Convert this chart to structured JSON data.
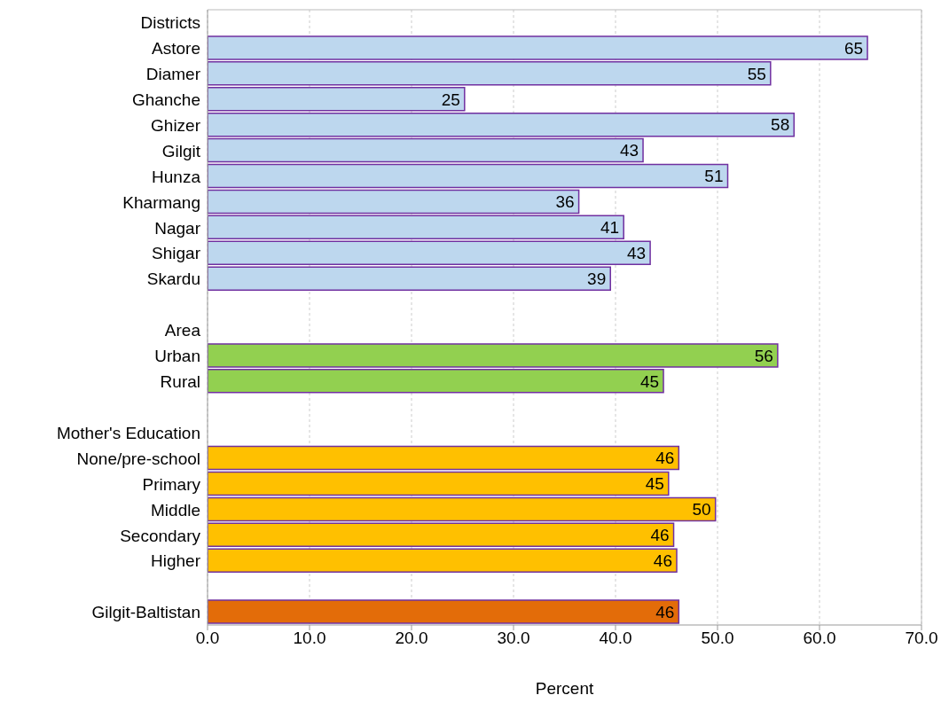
{
  "chart_data": {
    "type": "bar",
    "orientation": "horizontal",
    "xlabel": "Percent",
    "categories": [
      "Districts",
      "Astore",
      "Diamer",
      "Ghanche",
      "Ghizer",
      "Gilgit",
      "Hunza",
      "Kharmang",
      "Nagar",
      "Shigar",
      "Skardu",
      null,
      "Area",
      "Urban",
      "Rural",
      null,
      "Mother's Education",
      "None/pre-school",
      "Primary",
      "Middle",
      "Secondary",
      "Higher",
      null,
      "Gilgit-Baltistan"
    ],
    "values": [
      null,
      64.7,
      55.2,
      25.2,
      57.5,
      42.7,
      51.0,
      36.4,
      40.8,
      43.4,
      39.5,
      null,
      null,
      55.9,
      44.7,
      null,
      null,
      46.2,
      45.2,
      49.8,
      45.7,
      46.0,
      null,
      46.2
    ],
    "value_labels": [
      null,
      "65",
      "55",
      "25",
      "58",
      "43",
      "51",
      "36",
      "41",
      "43",
      "39",
      null,
      null,
      "56",
      "45",
      null,
      null,
      "46",
      "45",
      "50",
      "46",
      "46",
      null,
      "46"
    ],
    "colors": [
      null,
      "#bdd7ee",
      "#bdd7ee",
      "#bdd7ee",
      "#bdd7ee",
      "#bdd7ee",
      "#bdd7ee",
      "#bdd7ee",
      "#bdd7ee",
      "#bdd7ee",
      "#bdd7ee",
      null,
      null,
      "#92d050",
      "#92d050",
      null,
      null,
      "#ffc000",
      "#ffc000",
      "#ffc000",
      "#ffc000",
      "#ffc000",
      null,
      "#e36c09"
    ],
    "xlim": [
      0,
      70
    ],
    "xticks": [
      {
        "value": 0,
        "label": "0.0"
      },
      {
        "value": 10,
        "label": "10.0"
      },
      {
        "value": 20,
        "label": "20.0"
      },
      {
        "value": 30,
        "label": "30.0"
      },
      {
        "value": 40,
        "label": "40.0"
      },
      {
        "value": 50,
        "label": "50.0"
      },
      {
        "value": 60,
        "label": "60.0"
      },
      {
        "value": 70,
        "label": "70.0"
      }
    ],
    "grid": "x"
  }
}
